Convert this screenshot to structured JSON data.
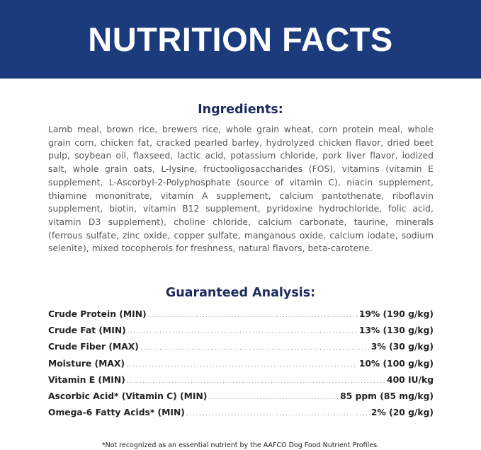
{
  "header": {
    "title": "NUTRITION FACTS",
    "color": "#1b3b7d"
  },
  "ingredients": {
    "heading": "Ingredients:",
    "text": "Lamb meal, brown rice, brewers rice, whole grain wheat, corn protein meal, whole grain corn, chicken fat, cracked pearled barley, hydrolyzed chicken flavor, dried beet pulp, soybean oil, flaxseed, lactic acid, potassium chloride, pork liver flavor, iodized salt, whole grain oats, L-lysine, fructooligosaccharides (FOS), vitamins (vitamin E supplement, L-Ascorbyl-2-Polyphosphate (source of vitamin C), niacin supplement, thiamine mononitrate, vitamin A supplement, calcium pantothenate, riboflavin supplement, biotin, vitamin B12 supplement, pyridoxine hydrochloride, folic acid, vitamin D3 supplement), choline chloride, calcium carbonate, taurine, minerals (ferrous sulfate, zinc oxide, copper sulfate, manganous oxide, calcium iodate, sodium selenite), mixed tocopherols for freshness, natural flavors, beta-carotene."
  },
  "analysis": {
    "heading": "Guaranteed Analysis:",
    "rows": [
      {
        "label": "Crude Protein (MIN)",
        "value": "19% (190 g/kg)"
      },
      {
        "label": "Crude Fat (MIN)",
        "value": "13% (130 g/kg)"
      },
      {
        "label": "Crude Fiber (MAX)",
        "value": "3% (30 g/kg)"
      },
      {
        "label": "Moisture (MAX)",
        "value": "10% (100 g/kg)"
      },
      {
        "label": "Vitamin E (MIN)",
        "value": "400 IU/kg"
      },
      {
        "label": "Ascorbic Acid* (Vitamin C) (MIN)",
        "value": "85 ppm (85 mg/kg)"
      },
      {
        "label": "Omega-6 Fatty Acids* (MIN)",
        "value": "2% (20 g/kg)"
      }
    ]
  },
  "footnote": "*Not recognized as an essential nutrient by the AAFCO Dog Food Nutrient Profiles."
}
